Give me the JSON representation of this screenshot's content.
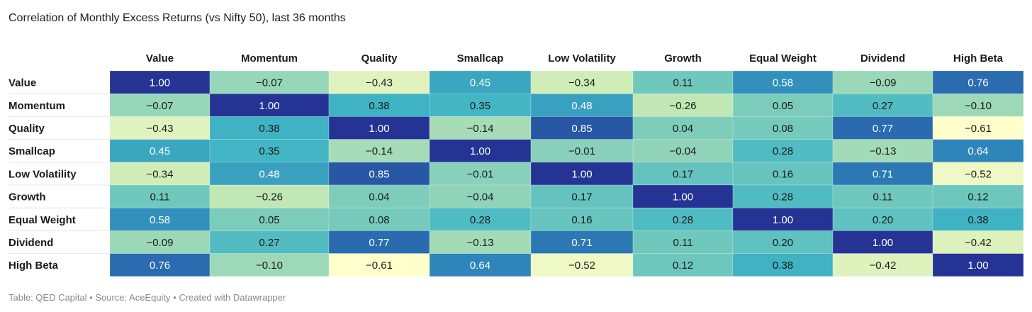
{
  "title": "Correlation of Monthly Excess Returns (vs Nifty 50), last 36 months",
  "footer": "Table: QED Capital • Source: AceEquity • Created with Datawrapper",
  "colors": {
    "scale": [
      "#ffffcc",
      "#c7e9b4",
      "#7fcdbb",
      "#41b6c4",
      "#2c7fb8",
      "#253494"
    ],
    "text_light": "#ffffff",
    "text_dark": "#1a1a1a",
    "row_divider": "#e6e6e6"
  },
  "chart_data": {
    "type": "heatmap",
    "title": "Correlation of Monthly Excess Returns (vs Nifty 50), last 36 months",
    "columns": [
      "Value",
      "Momentum",
      "Quality",
      "Smallcap",
      "Low Volatility",
      "Growth",
      "Equal Weight",
      "Dividend",
      "High Beta"
    ],
    "rows": [
      "Value",
      "Momentum",
      "Quality",
      "Smallcap",
      "Low Volatility",
      "Growth",
      "Equal Weight",
      "Dividend",
      "High Beta"
    ],
    "values": [
      [
        1.0,
        -0.07,
        -0.43,
        0.45,
        -0.34,
        0.11,
        0.58,
        -0.09,
        0.76
      ],
      [
        -0.07,
        1.0,
        0.38,
        0.35,
        0.48,
        -0.26,
        0.05,
        0.27,
        -0.1
      ],
      [
        -0.43,
        0.38,
        1.0,
        -0.14,
        0.85,
        0.04,
        0.08,
        0.77,
        -0.61
      ],
      [
        0.45,
        0.35,
        -0.14,
        1.0,
        -0.01,
        -0.04,
        0.28,
        -0.13,
        0.64
      ],
      [
        -0.34,
        0.48,
        0.85,
        -0.01,
        1.0,
        0.17,
        0.16,
        0.71,
        -0.52
      ],
      [
        0.11,
        -0.26,
        0.04,
        -0.04,
        0.17,
        1.0,
        0.28,
        0.11,
        0.12
      ],
      [
        0.58,
        0.05,
        0.08,
        0.28,
        0.16,
        0.28,
        1.0,
        0.2,
        0.38
      ],
      [
        -0.09,
        0.27,
        0.77,
        -0.13,
        0.71,
        0.11,
        0.2,
        1.0,
        -0.42
      ],
      [
        0.76,
        -0.1,
        -0.61,
        0.64,
        -0.52,
        0.12,
        0.38,
        -0.42,
        1.0
      ]
    ],
    "value_range": [
      -0.61,
      1.0
    ]
  }
}
